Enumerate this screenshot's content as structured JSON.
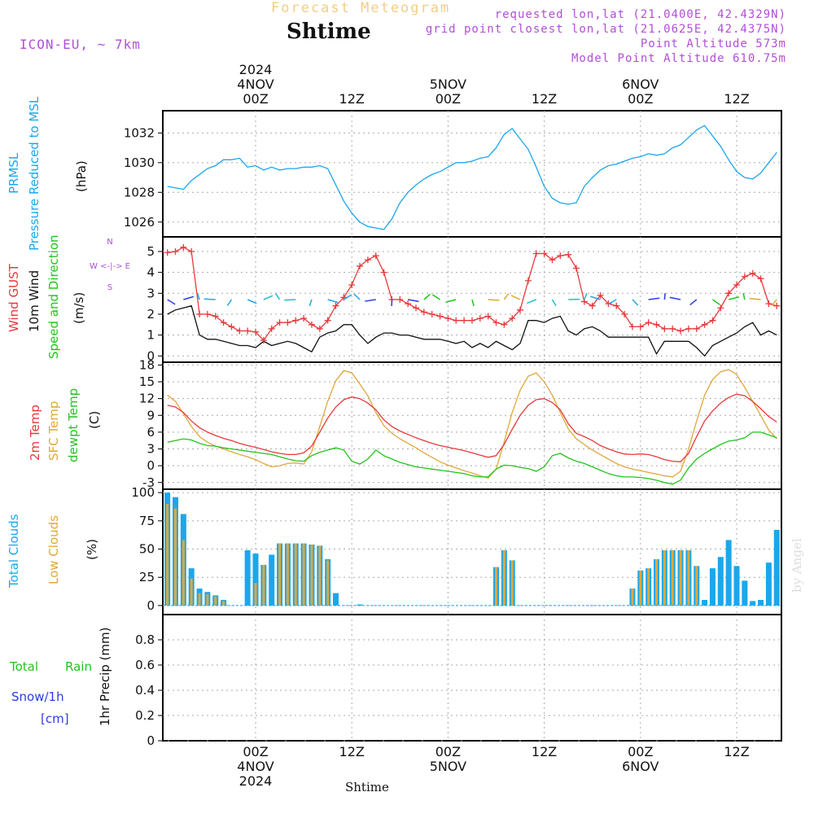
{
  "header": {
    "model": "ICON-EU, ~ 7km",
    "top_label": "Forecast Meteogram",
    "title": "Shtime",
    "requested": "requested lon,lat (21.0400E, 42.4329N)",
    "closest": "grid point closest lon,lat (21.0625E, 42.4375N)",
    "point_alt": "Point Altitude 573m",
    "model_alt": "Model Point Altitude 610.75m"
  },
  "colors": {
    "pressure": "#1aa7ec",
    "gust": "#e8383b",
    "wind": "#111111",
    "temp2m": "#e8383b",
    "sfc": "#e0a73a",
    "dewpt": "#22c41e",
    "total_clouds": "#1aa7ec",
    "low_clouds": "#e0a73a",
    "rain": "#22c41e",
    "snow": "#2b3de0",
    "purple": "#b04fd8"
  },
  "time_axis": {
    "top_labels": [
      {
        "x": 0,
        "lines": [
          "2024",
          "4NOV",
          "00Z"
        ]
      },
      {
        "x": 12,
        "lines": [
          "12Z"
        ]
      },
      {
        "x": 24,
        "lines": [
          "5NOV",
          "00Z"
        ]
      },
      {
        "x": 36,
        "lines": [
          "12Z"
        ]
      },
      {
        "x": 48,
        "lines": [
          "6NOV",
          "00Z"
        ]
      },
      {
        "x": 60,
        "lines": [
          "12Z"
        ]
      }
    ],
    "bottom_labels": [
      {
        "x": 0,
        "lines": [
          "00Z",
          "4NOV",
          "2024"
        ]
      },
      {
        "x": 12,
        "lines": [
          "12Z"
        ]
      },
      {
        "x": 24,
        "lines": [
          "00Z",
          "5NOV"
        ]
      },
      {
        "x": 36,
        "lines": [
          "12Z"
        ]
      },
      {
        "x": 48,
        "lines": [
          "00Z",
          "6NOV"
        ]
      },
      {
        "x": 60,
        "lines": [
          "12Z"
        ]
      }
    ],
    "footer": "Shtime",
    "credit": "by Angel"
  },
  "panels": {
    "pressure": {
      "labels": [
        "PRMSL",
        "Pressure Reduced to MSL",
        "(hPa)"
      ]
    },
    "wind": {
      "labels": [
        "Wind GUST",
        "10m Wind",
        "Speed and Direction",
        "(m/s)"
      ],
      "compass": [
        "N",
        "W <-|-> E",
        "S"
      ]
    },
    "temp": {
      "labels": [
        "2m Temp",
        "SFC Temp",
        "dewpt Temp",
        "(C)"
      ]
    },
    "clouds": {
      "labels": [
        "Total Clouds",
        "Low Clouds",
        "(%)"
      ]
    },
    "precip": {
      "labels": [
        "Total",
        "Rain",
        "Snow/1h",
        "[cm]",
        "1hr Precip (mm)"
      ]
    }
  },
  "chart_data": [
    {
      "type": "line",
      "title": "PRMSL",
      "ylabel": "(hPa)",
      "ylim": [
        1025,
        1033.5
      ],
      "yticks": [
        1026,
        1028,
        1030,
        1032
      ],
      "x": [
        -11,
        -9,
        -8,
        -6,
        -5,
        -4,
        -3,
        -2,
        -1,
        0,
        1,
        2,
        3,
        4,
        5,
        6,
        7,
        8,
        9,
        10,
        11,
        12,
        13,
        14,
        15,
        16,
        17,
        18,
        19,
        20,
        21,
        22,
        23,
        24,
        25,
        26,
        27,
        28,
        29,
        30,
        31,
        32,
        33,
        34,
        35,
        36,
        37,
        38,
        39,
        40,
        41,
        42,
        43,
        44,
        45,
        46,
        47,
        48,
        49,
        50,
        51,
        52,
        53,
        54,
        55,
        56,
        57,
        58,
        59,
        60,
        61,
        62,
        63,
        64,
        65
      ],
      "values": [
        1028.4,
        1028.2,
        1028.8,
        1029.6,
        1029.8,
        1030.2,
        1030.2,
        1030.3,
        1029.7,
        1029.8,
        1029.5,
        1029.7,
        1029.5,
        1029.6,
        1029.6,
        1029.7,
        1029.7,
        1029.8,
        1029.6,
        1028.5,
        1027.4,
        1026.6,
        1026.0,
        1025.7,
        1025.6,
        1025.5,
        1026.2,
        1027.3,
        1028.0,
        1028.5,
        1028.9,
        1029.2,
        1029.4,
        1029.7,
        1030.0,
        1030.0,
        1030.1,
        1030.3,
        1030.4,
        1031.0,
        1031.9,
        1032.3,
        1031.6,
        1030.9,
        1029.7,
        1028.4,
        1027.6,
        1027.3,
        1027.2,
        1027.3,
        1028.4,
        1029.0,
        1029.5,
        1029.8,
        1029.9,
        1030.1,
        1030.3,
        1030.4,
        1030.6,
        1030.5,
        1030.6,
        1031.0,
        1031.2,
        1031.7,
        1032.2,
        1032.5,
        1031.8,
        1031.1,
        1030.2,
        1029.4,
        1029.0,
        1028.9,
        1029.3,
        1030.0,
        1030.7
      ]
    },
    {
      "type": "line",
      "title": "Wind GUST / 10m Wind",
      "ylabel": "(m/s)",
      "ylim": [
        -0.3,
        5.7
      ],
      "yticks": [
        0,
        1,
        2,
        3,
        4,
        5
      ],
      "x": [
        -11,
        -10,
        -9,
        -8,
        -7,
        -6,
        -5,
        -4,
        -3,
        -2,
        -1,
        0,
        1,
        2,
        3,
        4,
        5,
        6,
        7,
        8,
        9,
        10,
        11,
        12,
        13,
        14,
        15,
        16,
        17,
        18,
        19,
        20,
        21,
        22,
        23,
        24,
        25,
        26,
        27,
        28,
        29,
        30,
        31,
        32,
        33,
        34,
        35,
        36,
        37,
        38,
        39,
        40,
        41,
        42,
        43,
        44,
        45,
        46,
        47,
        48,
        49,
        50,
        51,
        52,
        53,
        54,
        55,
        56,
        57,
        58,
        59,
        60,
        61,
        62,
        63,
        64,
        65
      ],
      "series": [
        {
          "name": "Wind GUST",
          "values": [
            4.95,
            5.0,
            5.2,
            5.0,
            2.0,
            2.0,
            1.9,
            1.6,
            1.4,
            1.2,
            1.2,
            1.15,
            0.75,
            1.3,
            1.6,
            1.6,
            1.7,
            1.8,
            1.5,
            1.3,
            1.7,
            2.4,
            2.8,
            3.4,
            4.3,
            4.6,
            4.8,
            4.0,
            2.7,
            2.7,
            2.5,
            2.3,
            2.1,
            2.0,
            1.9,
            1.8,
            1.7,
            1.7,
            1.7,
            1.8,
            1.9,
            1.6,
            1.5,
            1.8,
            2.2,
            3.6,
            4.9,
            4.9,
            4.6,
            4.8,
            4.85,
            4.2,
            2.6,
            2.4,
            2.9,
            2.5,
            2.4,
            2.0,
            1.4,
            1.4,
            1.6,
            1.5,
            1.3,
            1.3,
            1.2,
            1.3,
            1.3,
            1.5,
            1.7,
            2.3,
            3.0,
            3.4,
            3.8,
            3.95,
            3.7,
            2.5,
            2.4
          ]
        },
        {
          "name": "10m Wind",
          "values": [
            2.0,
            2.2,
            2.3,
            2.4,
            1.0,
            0.8,
            0.8,
            0.7,
            0.6,
            0.5,
            0.5,
            0.4,
            0.7,
            0.5,
            0.6,
            0.7,
            0.6,
            0.4,
            0.2,
            0.9,
            1.1,
            1.2,
            1.5,
            1.5,
            1.0,
            0.6,
            0.9,
            1.1,
            1.1,
            1.0,
            1.0,
            0.9,
            0.8,
            0.8,
            0.8,
            0.7,
            0.6,
            0.7,
            0.4,
            0.6,
            0.4,
            0.7,
            0.5,
            0.3,
            0.6,
            1.7,
            1.7,
            1.6,
            1.8,
            1.9,
            1.2,
            1.0,
            1.3,
            1.4,
            1.2,
            0.9,
            0.9,
            0.9,
            0.9,
            0.9,
            0.9,
            0.1,
            0.7,
            0.7,
            0.7,
            0.7,
            0.4,
            0.0,
            0.5,
            0.7,
            0.9,
            1.1,
            1.4,
            1.6,
            1.0,
            1.2,
            1.0
          ]
        }
      ]
    },
    {
      "type": "line",
      "title": "Temperature",
      "ylabel": "(C)",
      "ylim": [
        -4.2,
        18.5
      ],
      "yticks": [
        -3,
        0,
        3,
        6,
        9,
        12,
        15,
        18
      ],
      "x": [
        -11,
        -10,
        -9,
        -8,
        -7,
        -6,
        -5,
        -4,
        -3,
        -2,
        -1,
        0,
        1,
        2,
        3,
        4,
        5,
        6,
        7,
        8,
        9,
        10,
        11,
        12,
        13,
        14,
        15,
        16,
        17,
        18,
        19,
        20,
        21,
        22,
        23,
        24,
        25,
        26,
        27,
        28,
        29,
        30,
        31,
        32,
        33,
        34,
        35,
        36,
        37,
        38,
        39,
        40,
        41,
        42,
        43,
        44,
        45,
        46,
        47,
        48,
        49,
        50,
        51,
        52,
        53,
        54,
        55,
        56,
        57,
        58,
        59,
        60,
        61,
        62,
        63,
        64,
        65
      ],
      "series": [
        {
          "name": "2m Temp",
          "values": [
            10.8,
            10.5,
            9.5,
            8.0,
            6.8,
            6.0,
            5.4,
            4.9,
            4.5,
            4.0,
            3.6,
            3.3,
            2.9,
            2.5,
            2.2,
            2.0,
            2.0,
            2.3,
            3.5,
            6.0,
            8.5,
            10.5,
            11.8,
            12.3,
            12.0,
            11.2,
            10.0,
            8.2,
            7.0,
            6.2,
            5.6,
            5.0,
            4.5,
            4.0,
            3.6,
            3.3,
            3.0,
            2.7,
            2.3,
            1.9,
            1.5,
            1.8,
            3.8,
            6.5,
            9.0,
            10.8,
            11.8,
            12.0,
            11.3,
            10.0,
            7.5,
            5.8,
            5.2,
            4.5,
            3.6,
            3.0,
            2.5,
            2.1,
            2.0,
            2.1,
            2.0,
            1.6,
            1.1,
            0.8,
            0.7,
            2.2,
            5.2,
            8.0,
            9.8,
            11.2,
            12.2,
            12.8,
            12.5,
            11.5,
            10.2,
            8.8,
            7.8
          ]
        },
        {
          "name": "SFC Temp",
          "values": [
            12.6,
            11.5,
            9.3,
            7.0,
            5.2,
            4.2,
            3.5,
            3.0,
            2.5,
            2.0,
            1.6,
            1.1,
            0.4,
            -0.2,
            0.0,
            0.4,
            0.5,
            0.3,
            2.5,
            7.0,
            11.5,
            15.2,
            17.0,
            16.6,
            14.6,
            12.5,
            9.5,
            7.2,
            5.8,
            4.8,
            4.0,
            3.2,
            2.3,
            1.5,
            0.7,
            0.1,
            -0.4,
            -0.9,
            -1.3,
            -1.8,
            -2.2,
            -0.6,
            4.2,
            9.5,
            13.5,
            16.0,
            16.6,
            15.0,
            12.6,
            9.5,
            6.6,
            4.8,
            3.8,
            2.8,
            2.0,
            1.2,
            0.4,
            -0.2,
            -0.6,
            -0.9,
            -1.2,
            -1.5,
            -1.8,
            -2.0,
            -1.0,
            3.0,
            8.0,
            12.6,
            15.4,
            16.8,
            17.2,
            16.3,
            14.0,
            11.5,
            9.0,
            6.4,
            4.8
          ]
        },
        {
          "name": "dewpt Temp",
          "values": [
            4.2,
            4.5,
            4.8,
            4.6,
            4.0,
            3.6,
            3.5,
            3.2,
            3.0,
            2.8,
            2.6,
            2.4,
            2.2,
            2.0,
            1.6,
            1.2,
            0.9,
            0.8,
            1.8,
            2.4,
            2.8,
            3.2,
            2.8,
            0.8,
            0.3,
            1.2,
            2.8,
            1.8,
            1.2,
            0.6,
            0.2,
            -0.2,
            -0.4,
            -0.6,
            -0.8,
            -1.0,
            -1.2,
            -1.4,
            -1.8,
            -2.0,
            -2.0,
            -0.6,
            0.1,
            0.0,
            -0.3,
            -0.5,
            -1.0,
            -0.2,
            1.8,
            2.2,
            1.4,
            0.8,
            0.4,
            -0.2,
            -0.8,
            -1.4,
            -1.8,
            -2.0,
            -2.0,
            -2.1,
            -2.3,
            -2.6,
            -3.0,
            -3.3,
            -2.6,
            -0.4,
            1.2,
            2.2,
            3.0,
            3.8,
            4.4,
            4.6,
            5.0,
            6.0,
            6.0,
            5.5,
            5.0
          ]
        }
      ]
    },
    {
      "type": "bar",
      "title": "Clouds",
      "ylabel": "(%)",
      "ylim": [
        -8,
        103
      ],
      "yticks": [
        0,
        25,
        50,
        75,
        100
      ],
      "x": [
        -11,
        -10,
        -9,
        -8,
        -7,
        -6,
        -5,
        -4,
        -3,
        -2,
        -1,
        0,
        1,
        2,
        3,
        4,
        5,
        6,
        7,
        8,
        9,
        10,
        11,
        12,
        13,
        14,
        15,
        16,
        17,
        18,
        19,
        20,
        21,
        22,
        23,
        24,
        25,
        26,
        27,
        28,
        29,
        30,
        31,
        32,
        33,
        34,
        35,
        36,
        37,
        38,
        39,
        40,
        41,
        42,
        43,
        44,
        45,
        46,
        47,
        48,
        49,
        50,
        51,
        52,
        53,
        54,
        55,
        56,
        57,
        58,
        59,
        60,
        61,
        62,
        63,
        64,
        65
      ],
      "series": [
        {
          "name": "Total Clouds",
          "values": [
            100,
            96,
            81,
            33,
            15,
            12,
            9,
            5,
            0,
            0,
            49,
            46,
            36,
            45,
            55,
            55,
            55,
            55,
            54,
            53,
            41,
            11,
            0,
            0,
            1,
            0,
            0,
            0,
            0,
            0,
            0,
            0,
            0,
            0,
            0,
            0,
            0,
            0,
            0,
            0,
            0,
            34,
            49,
            40,
            0,
            0,
            0,
            0,
            0,
            0,
            0,
            0,
            0,
            0,
            0,
            0,
            0,
            0,
            15,
            31,
            33,
            41,
            49,
            49,
            49,
            49,
            35,
            5,
            33,
            43,
            58,
            35,
            22,
            4,
            5,
            38,
            67
          ]
        },
        {
          "name": "Low Clouds",
          "values": [
            90,
            86,
            58,
            24,
            11,
            10,
            8,
            4,
            0,
            0,
            0,
            20,
            36,
            0,
            55,
            55,
            55,
            55,
            54,
            53,
            40,
            0,
            0,
            0,
            0,
            0,
            0,
            0,
            0,
            0,
            0,
            0,
            0,
            0,
            0,
            0,
            0,
            0,
            0,
            0,
            0,
            34,
            49,
            40,
            0,
            0,
            0,
            0,
            0,
            0,
            0,
            0,
            0,
            0,
            0,
            0,
            0,
            0,
            15,
            31,
            33,
            41,
            49,
            49,
            49,
            49,
            35,
            0,
            0,
            0,
            0,
            0,
            0,
            0,
            0,
            0,
            0
          ]
        }
      ]
    },
    {
      "type": "bar",
      "title": "1hr Precip (mm)",
      "ylabel": "1hr Precip (mm)",
      "ylim": [
        0,
        1.0
      ],
      "yticks": [
        0,
        0.2,
        0.4,
        0.6,
        0.8
      ],
      "series": [
        {
          "name": "Total Rain",
          "values": []
        },
        {
          "name": "Snow/1h",
          "values": []
        }
      ]
    }
  ]
}
